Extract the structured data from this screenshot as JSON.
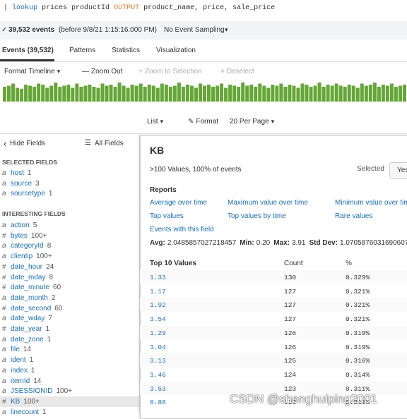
{
  "search": {
    "query_parts": [
      "| ",
      "lookup",
      " prices productId ",
      "OUTPUT",
      " product_name, price, sale_price"
    ]
  },
  "status": {
    "events": "39,532 events",
    "range": "(before 9/8/21 1:15:16.000 PM)",
    "sampling": "No Event Sampling"
  },
  "tabs": [
    "Events (39,532)",
    "Patterns",
    "Statistics",
    "Visualization"
  ],
  "timeline": {
    "tools": [
      "Format Timeline",
      "Zoom Out",
      "Zoom to Selection",
      "Deselect"
    ],
    "bars": [
      14,
      15,
      17,
      13,
      12,
      16,
      15,
      14,
      17,
      16,
      13,
      15,
      18,
      14,
      15,
      16,
      13,
      17,
      14,
      15,
      16,
      14,
      13,
      17,
      15,
      16,
      14,
      18,
      15,
      13,
      16,
      15,
      17,
      14,
      16,
      15,
      13,
      17,
      16,
      14,
      15,
      18,
      14,
      16,
      15,
      13,
      17,
      15,
      16,
      14,
      15,
      17,
      13,
      16,
      15,
      14,
      18,
      15,
      16,
      14,
      17,
      15,
      13,
      16,
      15,
      17,
      14,
      16,
      15,
      13,
      17,
      16,
      14,
      15,
      18,
      14,
      16,
      15,
      17,
      15,
      14,
      16,
      15,
      13,
      17,
      15,
      16,
      18,
      14,
      16,
      15,
      17,
      14,
      15,
      16
    ]
  },
  "results_toolbar": [
    "List",
    "Format",
    "20 Per Page"
  ],
  "sidebar": {
    "hide": "Hide Fields",
    "all": "All Fields",
    "selected_title": "SELECTED FIELDS",
    "selected": [
      {
        "type": "a",
        "name": "host",
        "count": "1"
      },
      {
        "type": "a",
        "name": "source",
        "count": "3"
      },
      {
        "type": "a",
        "name": "sourcetype",
        "count": "1"
      }
    ],
    "interesting_title": "INTERESTING FIELDS",
    "interesting": [
      {
        "type": "a",
        "name": "action",
        "count": "5"
      },
      {
        "type": "#",
        "name": "bytes",
        "count": "100+"
      },
      {
        "type": "a",
        "name": "categoryId",
        "count": "8"
      },
      {
        "type": "a",
        "name": "clientip",
        "count": "100+"
      },
      {
        "type": "#",
        "name": "date_hour",
        "count": "24"
      },
      {
        "type": "#",
        "name": "date_mday",
        "count": "8"
      },
      {
        "type": "#",
        "name": "date_minute",
        "count": "60"
      },
      {
        "type": "a",
        "name": "date_month",
        "count": "2"
      },
      {
        "type": "#",
        "name": "date_second",
        "count": "60"
      },
      {
        "type": "a",
        "name": "date_wday",
        "count": "7"
      },
      {
        "type": "#",
        "name": "date_year",
        "count": "1"
      },
      {
        "type": "a",
        "name": "date_zone",
        "count": "1"
      },
      {
        "type": "a",
        "name": "file",
        "count": "14"
      },
      {
        "type": "a",
        "name": "ident",
        "count": "1"
      },
      {
        "type": "a",
        "name": "index",
        "count": "1"
      },
      {
        "type": "a",
        "name": "itemId",
        "count": "14"
      },
      {
        "type": "a",
        "name": "JSESSIONID",
        "count": "100+"
      },
      {
        "type": "#",
        "name": "KB",
        "count": "100+"
      },
      {
        "type": "a",
        "name": "linecount",
        "count": "1"
      }
    ]
  },
  "popup": {
    "title": "KB",
    "summary": ">100 Values, 100% of events",
    "selected_label": "Selected",
    "selected_value": "Yes",
    "reports_title": "Reports",
    "reports": [
      "Average over time",
      "Maximum value over time",
      "Minimum value over time",
      "Top values",
      "Top values by time",
      "Rare values",
      "Events with this field"
    ],
    "stats": [
      {
        "label": "Avg:",
        "value": "2.0485857027218457"
      },
      {
        "label": "Min:",
        "value": "0.20"
      },
      {
        "label": "Max:",
        "value": "3.91"
      },
      {
        "label": "Std Dev:",
        "value": "1.0705876031690607"
      }
    ],
    "table": {
      "headers": [
        "Top 10 Values",
        "Count",
        "%"
      ],
      "rows": [
        [
          "1.33",
          "130",
          "0.329%"
        ],
        [
          "1.17",
          "127",
          "0.321%"
        ],
        [
          "1.92",
          "127",
          "0.321%"
        ],
        [
          "3.54",
          "127",
          "0.321%"
        ],
        [
          "1.29",
          "126",
          "0.319%"
        ],
        [
          "3.04",
          "126",
          "0.319%"
        ],
        [
          "3.13",
          "125",
          "0.316%"
        ],
        [
          "1.46",
          "124",
          "0.314%"
        ],
        [
          "3.53",
          "123",
          "0.311%"
        ],
        [
          "0.88",
          "123",
          "0.311%"
        ]
      ]
    }
  },
  "watermark": "CSDN @shenghuiping2001"
}
